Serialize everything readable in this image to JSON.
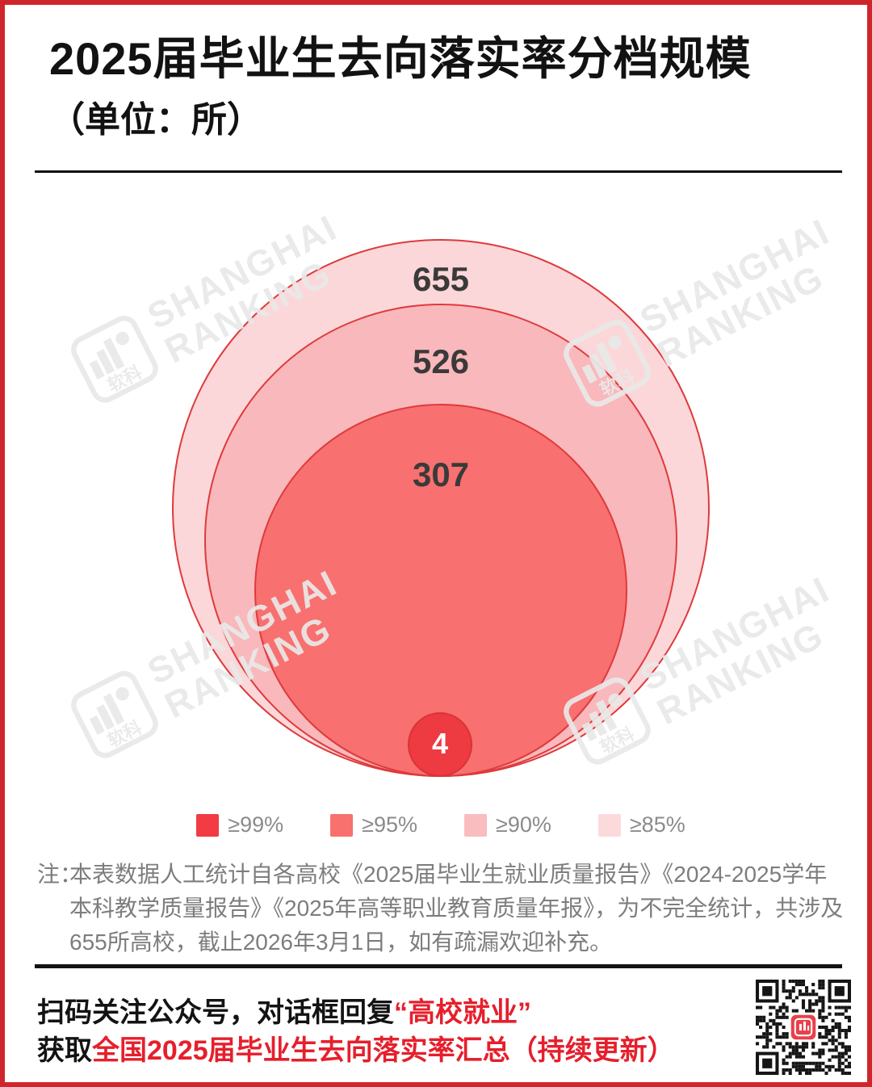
{
  "header": {
    "title": "2025届毕业生去向落实率分档规模",
    "subtitle": "（单位：所）"
  },
  "chart_data": {
    "type": "nested-circles",
    "title": "2025届毕业生去向落实率分档规模",
    "unit": "所",
    "series": [
      {
        "label": "≥85%",
        "value": 655,
        "color": "#FBD7D9"
      },
      {
        "label": "≥90%",
        "value": 526,
        "color": "#F9B8BB"
      },
      {
        "label": "≥95%",
        "value": 307,
        "color": "#F8706F"
      },
      {
        "label": "≥99%",
        "value": 4,
        "color": "#EE3A41"
      }
    ],
    "outline_color": "#DE3A3C",
    "legend_position": "bottom",
    "layout": "circles tangent at bottom, area proportional to value"
  },
  "legend": {
    "items": [
      {
        "label": "≥99%",
        "color": "#F23B42"
      },
      {
        "label": "≥95%",
        "color": "#F8716F"
      },
      {
        "label": "≥90%",
        "color": "#F9BCBF"
      },
      {
        "label": "≥85%",
        "color": "#FCDADC"
      }
    ]
  },
  "watermark": {
    "line1": "SHANGHAI",
    "line2": "RANKING",
    "logo_text": "软科"
  },
  "note": {
    "prefix": "注：",
    "text": "本表数据人工统计自各高校《2025届毕业生就业质量报告》《2024-2025学年本科教学质量报告》《2025年高等职业教育质量年报》，为不完全统计，共涉及655所高校，截止2026年3月1日，如有疏漏欢迎补充。"
  },
  "footer": {
    "line1_black": "扫码关注公众号，对话框回复",
    "line1_red": "“高校就业”",
    "line2_black": "获取",
    "line2_red": "全国2025届毕业生去向落实率汇总（持续更新）",
    "qr_name": "qr-code"
  }
}
